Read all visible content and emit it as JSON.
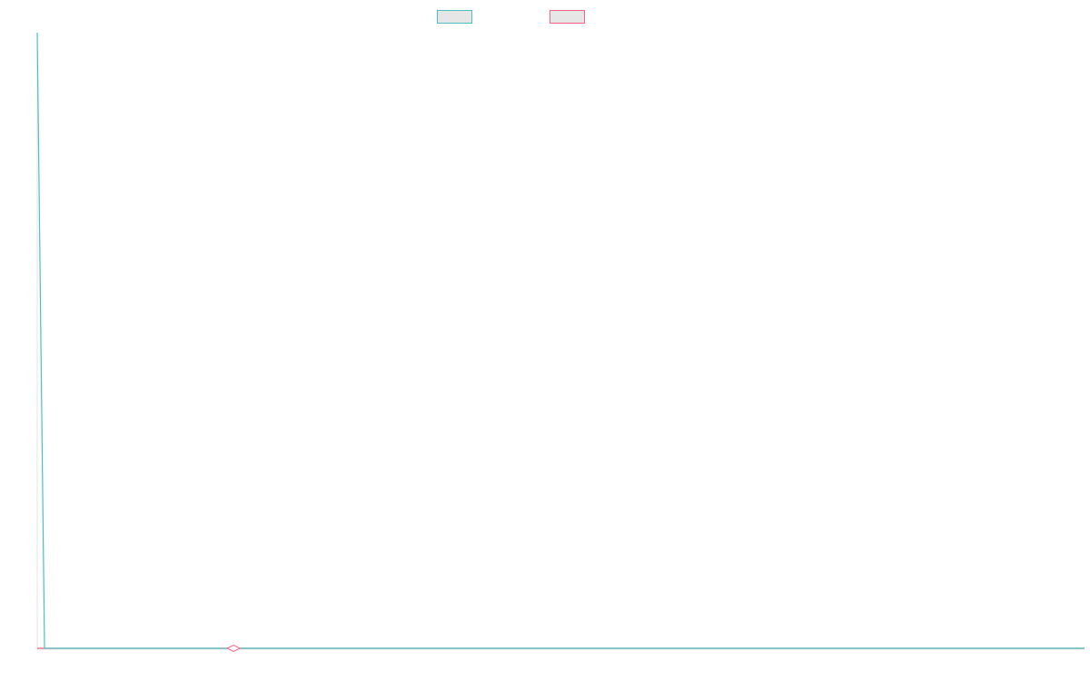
{
  "chart_data": {
    "type": "line",
    "title": "",
    "xlabel": "",
    "ylabel": "",
    "grid": false,
    "legend_placement": "top-center",
    "x": [
      0,
      1,
      2,
      3,
      4,
      5,
      6,
      7,
      8,
      9,
      10,
      11,
      12,
      13,
      14,
      15,
      16,
      17,
      18,
      19,
      20,
      21,
      22,
      23,
      24,
      25,
      26,
      27,
      28,
      29,
      30,
      31,
      32,
      33,
      34,
      35,
      36,
      37,
      38,
      39,
      40,
      41,
      42,
      43,
      44,
      45,
      46,
      47,
      48,
      49,
      50,
      51,
      52,
      53,
      54,
      55,
      56,
      57,
      58,
      59,
      60,
      61,
      62,
      63,
      64,
      65,
      66,
      67,
      68,
      69,
      70,
      71,
      72,
      73,
      74,
      75,
      76,
      77,
      78,
      79,
      80,
      81,
      82,
      83,
      84,
      85,
      86,
      87,
      88,
      89,
      90,
      91,
      92,
      93,
      94,
      95,
      96,
      97,
      98,
      99,
      100,
      101,
      102,
      103,
      104,
      105,
      106,
      107,
      108,
      109,
      110,
      111,
      112,
      113,
      114,
      115,
      116,
      117,
      118,
      119,
      120,
      121,
      122,
      123,
      124,
      125,
      126,
      127,
      128,
      129,
      130,
      131,
      132,
      133,
      134,
      135,
      136,
      137,
      138,
      139,
      140,
      141,
      142,
      143,
      144
    ],
    "ylim": [
      0,
      100
    ],
    "series": [
      {
        "name": "",
        "color": "#4bc0c0",
        "values": [
          100,
          0,
          0,
          0,
          0,
          0,
          0,
          0,
          0,
          0,
          0,
          0,
          0,
          0,
          0,
          0,
          0,
          0,
          0,
          0,
          0,
          0,
          0,
          0,
          0,
          0,
          0,
          0,
          0,
          0,
          0,
          0,
          0,
          0,
          0,
          0,
          0,
          0,
          0,
          0,
          0,
          0,
          0,
          0,
          0,
          0,
          0,
          0,
          0,
          0,
          0,
          0,
          0,
          0,
          0,
          0,
          0,
          0,
          0,
          0,
          0,
          0,
          0,
          0,
          0,
          0,
          0,
          0,
          0,
          0,
          0,
          0,
          0,
          0,
          0,
          0,
          0,
          0,
          0,
          0,
          0,
          0,
          0,
          0,
          0,
          0,
          0,
          0,
          0,
          0,
          0,
          0,
          0,
          0,
          0,
          0,
          0,
          0,
          0,
          0,
          0,
          0,
          0,
          0,
          0,
          0,
          0,
          0,
          0,
          0,
          0,
          0,
          0,
          0,
          0,
          0,
          0,
          0,
          0,
          0,
          0,
          0,
          0,
          0,
          0,
          0,
          0,
          0,
          0,
          0,
          0,
          0,
          0,
          0,
          0,
          0,
          0,
          0,
          0,
          0,
          0,
          0,
          0,
          0,
          0
        ]
      },
      {
        "name": "",
        "color": "#ff6384",
        "values": [
          0,
          0,
          0,
          0,
          0,
          0,
          0,
          0,
          0,
          0,
          0,
          0,
          0,
          0,
          0,
          0,
          0,
          0,
          0,
          0,
          0,
          0,
          0,
          0,
          0,
          0,
          0,
          0,
          0,
          0,
          0,
          0,
          0,
          0,
          0,
          0,
          0,
          0,
          0,
          0,
          0,
          0,
          0,
          0,
          0,
          0,
          0,
          0,
          0,
          0,
          0,
          0,
          0,
          0,
          0,
          0,
          0,
          0,
          0,
          0,
          0,
          0,
          0,
          0,
          0,
          0,
          0,
          0,
          0,
          0,
          0,
          0,
          0,
          0,
          0,
          0,
          0,
          0,
          0,
          0,
          0,
          0,
          0,
          0,
          0,
          0,
          0,
          0,
          0,
          0,
          0,
          0,
          0,
          0,
          0,
          0,
          0,
          0,
          0,
          0,
          0,
          0,
          0,
          0,
          0,
          0,
          0,
          0,
          0,
          0,
          0,
          0,
          0,
          0,
          0,
          0,
          0,
          0,
          0,
          0,
          0,
          0,
          0,
          0,
          0,
          0,
          0,
          0,
          0,
          0,
          0,
          0,
          0,
          0,
          0,
          0,
          0,
          0,
          0,
          0,
          0,
          0,
          0,
          0,
          0
        ],
        "marker_index": 27,
        "marker_shape": "diamond"
      }
    ]
  }
}
